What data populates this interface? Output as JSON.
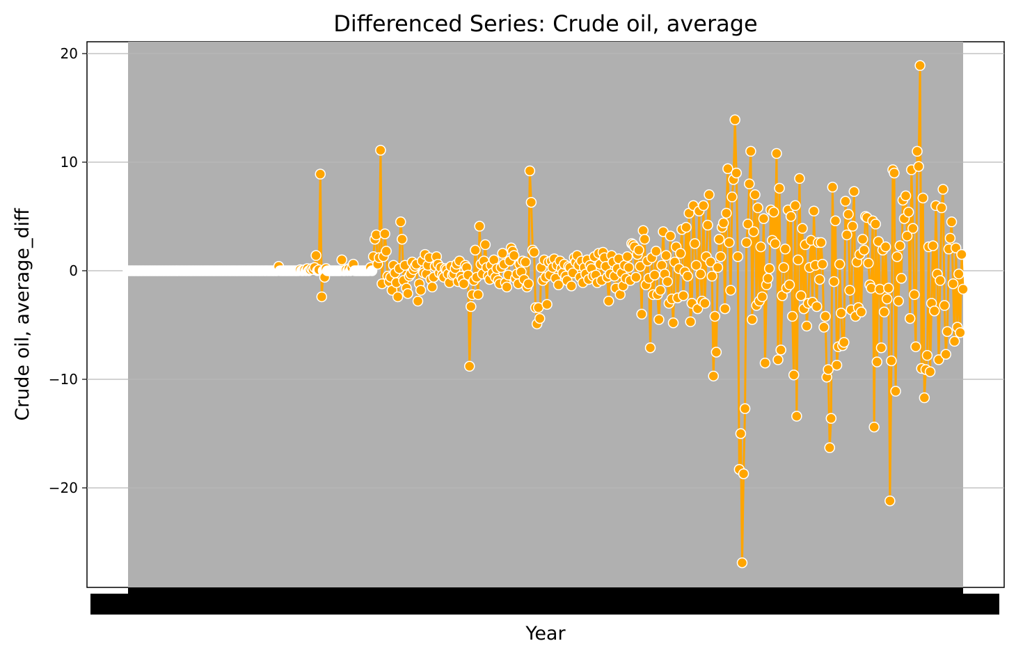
{
  "chart_data": {
    "type": "line",
    "title": "Differenced Series: Crude oil, average",
    "xlabel": "Year",
    "ylabel": "Crude oil, average_diff",
    "ylim": [
      -29.5,
      21.2
    ],
    "yticks": [
      20,
      10,
      0,
      -10,
      -20
    ],
    "ytick_labels": [
      "20",
      "10",
      "0",
      "−10",
      "−20"
    ],
    "grid": "horizontal",
    "colors": {
      "line": "#FFA500",
      "marker_fill": "#FFA500",
      "marker_edge": "#ffffff",
      "plot_background": "#B0B0B0"
    },
    "series": [
      {
        "x_note": "monthly observations 1960-01 .. 2022-11",
        "values": [
          0,
          0,
          0,
          0,
          0,
          0,
          0,
          0,
          0,
          0,
          0,
          0,
          0,
          0,
          0,
          0,
          0,
          0,
          0,
          0,
          0,
          0,
          0,
          0,
          0,
          0,
          0,
          0,
          0,
          0,
          0,
          0,
          0,
          0,
          0,
          0,
          0,
          0,
          0,
          0,
          0,
          0,
          0,
          0,
          0,
          0,
          0,
          0,
          0,
          0,
          0,
          0,
          0,
          0,
          0,
          0,
          0,
          0,
          0,
          0,
          0,
          0,
          0,
          0,
          0,
          0,
          0,
          0,
          0,
          0,
          0,
          0,
          0,
          0,
          0,
          0,
          0,
          0,
          0,
          0,
          0,
          0,
          0,
          0,
          0,
          0,
          0,
          0,
          0,
          0,
          0,
          0,
          0,
          0,
          0,
          0,
          0,
          0,
          0,
          0,
          0,
          0,
          0,
          0,
          0,
          0.4,
          0,
          0,
          0,
          0,
          0,
          0,
          0,
          0,
          0,
          0,
          0,
          0,
          0,
          0,
          0.1,
          0,
          0,
          0.1,
          0,
          0.2,
          0,
          0.1,
          0.2,
          0.1,
          0.3,
          1.4,
          0,
          0.1,
          8.9,
          -2.4,
          0,
          -0.6,
          0.2,
          0,
          0,
          0,
          0,
          0,
          0,
          0,
          0,
          0,
          0,
          1,
          0,
          0,
          0.1,
          0,
          0.2,
          0,
          0.3,
          0.6,
          0,
          0,
          0,
          0,
          0,
          0,
          0,
          0,
          0,
          0,
          0,
          0.3,
          0,
          1.3,
          2.9,
          3.3,
          0.6,
          1.2,
          11.1,
          -1.2,
          1.3,
          3.4,
          1.8,
          -0.5,
          -1.0,
          -0.6,
          -1.8,
          0.5,
          -0.2,
          -1.1,
          -2.4,
          0.2,
          4.5,
          2.9,
          -0.9,
          0.5,
          -1.6,
          -2.1,
          -0.5,
          -0.3,
          0.8,
          0.1,
          0.4,
          0.6,
          -2.8,
          -1.2,
          -1.8,
          0.9,
          -0.2,
          1.5,
          -0.3,
          0.5,
          1.2,
          -0.8,
          -1.5,
          -0.6,
          0.4,
          1.3,
          0.6,
          -0.2,
          0.3,
          -0.4,
          -0.6,
          0.2,
          0.1,
          -0.3,
          -1.1,
          0.4,
          -0.4,
          -0.3,
          0.2,
          0.6,
          -1.0,
          0.9,
          -0.5,
          -0.8,
          -1.2,
          0.5,
          0.3,
          -0.4,
          -8.8,
          -3.3,
          -2.2,
          -0.9,
          1.9,
          -0.6,
          -2.2,
          4.1,
          0.6,
          -0.3,
          0.9,
          2.4,
          0.3,
          -0.5,
          -0.8,
          0.5,
          -0.2,
          1.0,
          -0.6,
          0.2,
          -0.9,
          -1.2,
          0.3,
          1.6,
          0.6,
          -1.1,
          -1.5,
          -0.4,
          0.9,
          2.1,
          1.8,
          1.4,
          -0.7,
          -0.3,
          -1.2,
          0.6,
          -0.1,
          0.9,
          -0.8,
          0.8,
          -1.5,
          -1.2,
          9.2,
          6.3,
          1.9,
          1.7,
          -3.4,
          -4.9,
          -3.4,
          -4.4,
          0.3,
          -0.9,
          1.0,
          -0.6,
          -3.1,
          0.8,
          -0.4,
          0.9,
          0.3,
          1.1,
          -0.7,
          0.5,
          -1.3,
          0.9,
          0.2,
          -0.2,
          0.6,
          -0.5,
          -0.9,
          0.4,
          0.3,
          -1.4,
          -0.2,
          1.2,
          0.8,
          1.4,
          0.5,
          -0.6,
          0.9,
          -1.1,
          0.3,
          -0.3,
          1.0,
          -0.8,
          0.5,
          0.2,
          -0.5,
          1.3,
          -0.4,
          -1.1,
          1.6,
          0.6,
          -0.9,
          1.7,
          1.2,
          0.4,
          -0.6,
          -2.8,
          -0.3,
          1.4,
          0.8,
          -0.5,
          -1.6,
          0.2,
          1.1,
          -2.2,
          -0.2,
          -1.4,
          0.5,
          -0.7,
          1.3,
          0.3,
          -0.9,
          2.5,
          2.4,
          2.2,
          -0.6,
          1.5,
          1.9,
          0.4,
          -4.0,
          3.7,
          2.9,
          -1.3,
          0.9,
          -0.7,
          -7.1,
          1.2,
          -2.2,
          -0.4,
          1.8,
          -2.2,
          -4.5,
          -1.8,
          0.5,
          3.6,
          -0.3,
          1.4,
          -1.0,
          -3.0,
          3.2,
          -2.6,
          -4.8,
          0.8,
          2.2,
          -2.5,
          0.2,
          1.6,
          3.8,
          -2.3,
          -0.1,
          4.0,
          -0.5,
          5.3,
          -4.7,
          -3.0,
          6.0,
          2.5,
          0.5,
          -3.5,
          5.5,
          -0.3,
          -2.8,
          6.0,
          -3.0,
          1.3,
          4.2,
          7.0,
          0.8,
          -0.5,
          -9.7,
          -4.2,
          -7.5,
          0.3,
          2.9,
          1.3,
          4.0,
          4.4,
          -3.5,
          5.3,
          9.4,
          2.6,
          -1.8,
          6.8,
          8.4,
          13.9,
          9.0,
          1.3,
          -18.3,
          -15.0,
          -26.9,
          -18.7,
          -12.7,
          2.6,
          4.3,
          8.0,
          11.0,
          -4.5,
          3.6,
          7.0,
          -3.2,
          5.8,
          -2.8,
          2.2,
          -2.4,
          4.8,
          -8.5,
          -1.3,
          -0.7,
          0.2,
          5.6,
          2.8,
          5.4,
          2.5,
          10.8,
          -8.2,
          7.6,
          -7.3,
          -2.3,
          0.3,
          2.0,
          -1.6,
          5.6,
          -1.3,
          5.0,
          -4.2,
          -9.6,
          6.0,
          -13.4,
          1.0,
          8.5,
          -2.3,
          3.9,
          -3.5,
          2.4,
          -5.1,
          -3.0,
          0.3,
          2.8,
          -2.9,
          5.5,
          0.5,
          -3.3,
          2.6,
          -0.8,
          2.6,
          0.6,
          -5.2,
          -4.2,
          -9.8,
          -9.1,
          -16.3,
          -13.6,
          7.7,
          -1.0,
          4.6,
          -8.7,
          -7.0,
          0.6,
          -3.9,
          -6.9,
          -6.6,
          6.4,
          3.3,
          5.2,
          -1.8,
          -3.6,
          4.1,
          7.3,
          -4.2,
          0.8,
          -3.4,
          1.5,
          -3.8,
          2.9,
          1.9,
          5.0,
          4.9,
          0.7,
          -1.3,
          -1.6,
          4.6,
          -14.4,
          4.3,
          -8.4,
          2.7,
          -1.7,
          -7.1,
          1.9,
          -3.8,
          2.2,
          -2.6,
          -1.6,
          -21.2,
          -8.3,
          9.3,
          9.0,
          -11.1,
          1.3,
          -2.8,
          2.3,
          -0.7,
          6.5,
          4.8,
          6.9,
          3.2,
          5.4,
          -4.4,
          9.3,
          3.9,
          -2.2,
          -7.0,
          11.0,
          9.6,
          18.9,
          -9.0,
          6.7,
          -11.7,
          -9.1,
          -7.8,
          2.2,
          -9.3,
          -3.0,
          2.3,
          -3.7,
          6.0,
          -0.3,
          -8.2,
          -0.9,
          5.8,
          7.5,
          -3.2,
          -7.7,
          -5.6,
          2.0,
          3.0,
          4.5,
          -1.2,
          -6.5,
          2.1,
          -5.2,
          -0.3,
          -5.7,
          1.5,
          -1.7
        ]
      }
    ]
  }
}
